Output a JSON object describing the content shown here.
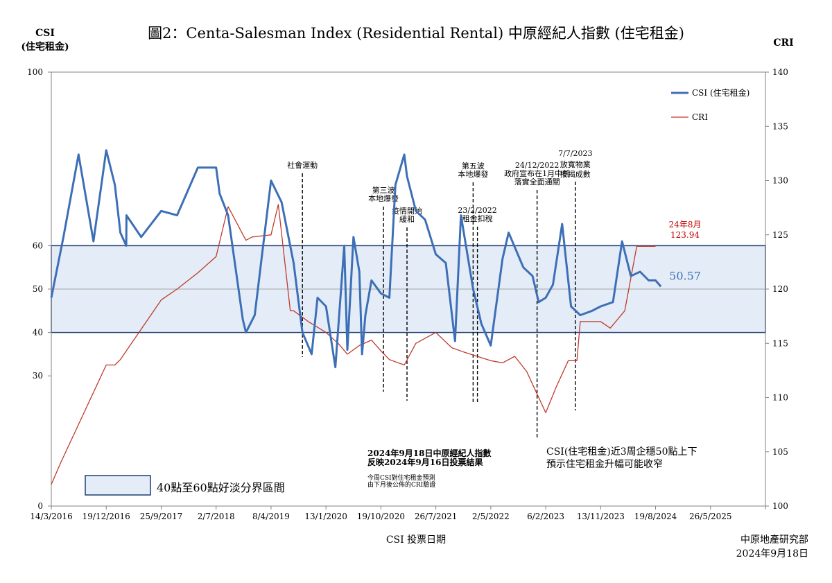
{
  "title": "圖2：Centa-Salesman Index (Residential Rental)  中原經紀人指數 (住宅租金)",
  "left_axis_label": [
    "CSI",
    "(住宅租金)"
  ],
  "right_axis_label": "CRI",
  "x_axis_label": "CSI 投票日期",
  "source": [
    "中原地產研究部",
    "2024年9月18日"
  ],
  "colors": {
    "csi": "#3d6fb6",
    "cri": "#c0392b",
    "band": "#e3ecf7",
    "band_border": "#1f3f73",
    "highlight": "#c00000"
  },
  "chart_data": {
    "type": "line",
    "x_ticks": [
      "14/3/2016",
      "19/12/2016",
      "25/9/2017",
      "2/7/2018",
      "8/4/2019",
      "13/1/2020",
      "19/10/2020",
      "26/7/2021",
      "2/5/2022",
      "6/2/2023",
      "13/11/2023",
      "19/8/2024",
      "26/5/2025"
    ],
    "left_axis": {
      "min": 0,
      "max": 100,
      "ticks": [
        0,
        30,
        40,
        50,
        60,
        100
      ]
    },
    "right_axis": {
      "min": 100,
      "max": 140,
      "ticks": [
        100,
        105,
        110,
        115,
        120,
        125,
        130,
        135,
        140
      ]
    },
    "band": {
      "from": 40,
      "to": 60,
      "label": "40點至60點好淡分界區間"
    },
    "reference_line": 50,
    "series": [
      {
        "name": "CSI (住宅租金)",
        "axis": "left",
        "x": [
          "14/3/2016",
          "15/5/2016",
          "31/7/2016",
          "15/10/2016",
          "19/12/2016",
          "1/2/2017",
          "1/3/2017",
          "31/3/2017",
          "1/4/2017",
          "1/5/2017",
          "15/6/2017",
          "25/9/2017",
          "15/12/2017",
          "31/3/2018",
          "2/7/2018",
          "20/7/2018",
          "1/9/2018",
          "15/11/2018",
          "1/12/2018",
          "15/1/2019",
          "8/4/2019",
          "1/6/2019",
          "1/8/2019",
          "15/9/2019",
          "1/11/2019",
          "1/12/2019",
          "13/1/2020",
          "1/3/2020",
          "15/4/2020",
          "1/5/2020",
          "1/6/2020",
          "1/7/2020",
          "15/7/2020",
          "1/8/2020",
          "1/9/2020",
          "19/10/2020",
          "1/12/2020",
          "1/1/2021",
          "15/2/2021",
          "1/3/2021",
          "15/4/2021",
          "1/6/2021",
          "26/7/2021",
          "15/9/2021",
          "1/11/2021",
          "1/12/2021",
          "1/2/2022",
          "15/3/2022",
          "2/5/2022",
          "1/7/2022",
          "1/8/2022",
          "15/10/2022",
          "1/12/2022",
          "1/1/2023",
          "6/2/2023",
          "15/3/2023",
          "1/5/2023",
          "15/6/2023",
          "1/8/2023",
          "1/10/2023",
          "13/11/2023",
          "15/1/2024",
          "1/3/2024",
          "15/4/2024",
          "1/6/2024",
          "15/7/2024",
          "19/8/2024",
          "15/9/2024"
        ],
        "values": [
          48,
          62,
          81,
          61,
          82,
          74,
          63,
          60,
          67,
          65,
          62,
          68,
          67,
          78,
          78,
          72,
          67,
          43,
          40,
          44,
          75,
          70,
          56,
          40,
          35,
          48,
          46,
          32,
          60,
          36,
          62,
          54,
          35,
          44,
          52,
          49,
          48,
          74,
          81,
          76,
          68,
          66,
          58,
          56,
          38,
          67,
          50,
          42,
          37,
          57,
          63,
          55,
          53,
          47,
          48,
          51,
          65,
          46,
          44,
          45,
          46,
          47,
          61,
          53,
          54,
          52,
          52,
          50.57
        ]
      },
      {
        "name": "CRI",
        "axis": "right",
        "x": [
          "14/3/2016",
          "1/5/2016",
          "19/12/2016",
          "1/2/2017",
          "1/3/2017",
          "25/9/2017",
          "15/12/2017",
          "31/3/2018",
          "2/7/2018",
          "1/9/2018",
          "1/12/2018",
          "1/1/2019",
          "8/4/2019",
          "15/5/2019",
          "15/7/2019",
          "1/8/2019",
          "15/10/2019",
          "13/1/2020",
          "15/3/2020",
          "1/5/2020",
          "1/7/2020",
          "1/9/2020",
          "19/10/2020",
          "1/12/2020",
          "15/2/2021",
          "15/4/2021",
          "26/7/2021",
          "15/10/2021",
          "15/12/2021",
          "2/5/2022",
          "1/7/2022",
          "1/9/2022",
          "1/11/2022",
          "6/2/2023",
          "1/4/2023",
          "1/6/2023",
          "15/7/2023",
          "1/8/2023",
          "13/11/2023",
          "1/1/2024",
          "15/3/2024",
          "15/5/2024",
          "19/8/2024"
        ],
        "values": [
          102,
          104,
          113,
          113,
          113.5,
          119,
          120,
          121.5,
          123,
          127.6,
          124.5,
          124.8,
          125,
          127.8,
          118,
          118,
          117,
          116,
          115,
          114,
          114.8,
          115.3,
          114.3,
          113.5,
          113,
          115,
          116,
          114.6,
          114.2,
          113.4,
          113.2,
          113.8,
          112.4,
          108.6,
          111,
          113.4,
          113.4,
          117,
          117,
          116.4,
          118,
          123.94,
          123.94
        ]
      }
    ],
    "annotations": [
      {
        "date": "15/9/2019",
        "lines": [
          "社會運動"
        ]
      },
      {
        "date": "1/11/2020",
        "lines": [
          "第三波",
          "本地爆發"
        ]
      },
      {
        "date": "1/3/2021",
        "lines": [
          "疫情開始",
          "緩和"
        ]
      },
      {
        "date": "1/2/2022",
        "lines": [
          "第五波",
          "本地爆發"
        ]
      },
      {
        "date": "23/2/2022",
        "lines": [
          "23/2/2022",
          "租金扣稅"
        ]
      },
      {
        "date": "24/12/2022",
        "lines": [
          "24/12/2022",
          "政府宣布在1月中前",
          "落實全面通關"
        ]
      },
      {
        "date": "7/7/2023",
        "lines": [
          "7/7/2023",
          "放寬物業",
          "按揭成數"
        ]
      }
    ],
    "legend": {
      "position": "top-right",
      "items": [
        "CSI (住宅租金)",
        "CRI"
      ]
    },
    "latest_cri": {
      "label": "24年8月",
      "value": "123.94"
    },
    "latest_csi": "50.57",
    "note_left": [
      "2024年9月18日中原經紀人指數",
      "反映2024年9月16日投票結果"
    ],
    "note_left_small": [
      "今周CSI對住宅租金預測",
      "由下月後公佈的CRI驗證"
    ],
    "note_right": [
      "CSI(住宅租金)近3周企穩50點上下",
      "預示住宅租金升幅可能收窄"
    ]
  }
}
